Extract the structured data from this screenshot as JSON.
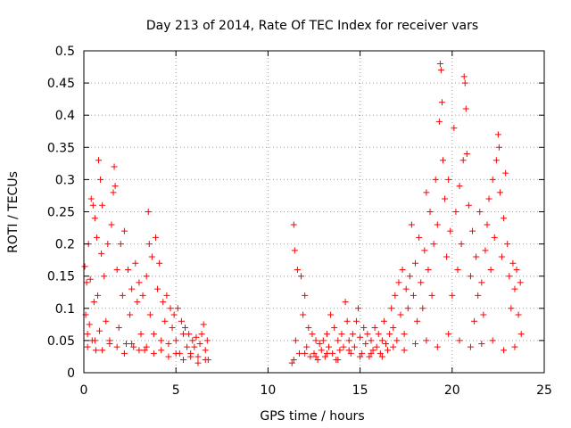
{
  "chart_data": {
    "type": "scatter",
    "title": "Day 213 of 2014, Rate Of TEC Index for receiver vars",
    "xlabel": "GPS time / hours",
    "ylabel": "ROTI / TECUs",
    "xlim": [
      0,
      25
    ],
    "ylim": [
      0,
      0.5
    ],
    "xticks": [
      0,
      5,
      10,
      15,
      20,
      25
    ],
    "xtick_labels": [
      "0",
      "5",
      "10",
      "15",
      "20",
      "25"
    ],
    "yticks": [
      0,
      0.05,
      0.1,
      0.15,
      0.2,
      0.25,
      0.3,
      0.35,
      0.4,
      0.45,
      0.5
    ],
    "ytick_labels": [
      "0",
      "0.05",
      "0.1",
      "0.15",
      "0.2",
      "0.25",
      "0.3",
      "0.35",
      "0.4",
      "0.45",
      "0.5"
    ],
    "grid": true,
    "marker": "+",
    "marker_color": "#ff0000",
    "series": [
      {
        "name": "ROTI",
        "points": [
          [
            0.05,
            0.165
          ],
          [
            0.1,
            0.09
          ],
          [
            0.15,
            0.14
          ],
          [
            0.2,
            0.06
          ],
          [
            0.25,
            0.2
          ],
          [
            0.3,
            0.075
          ],
          [
            0.35,
            0.145
          ],
          [
            0.4,
            0.27
          ],
          [
            0.45,
            0.05
          ],
          [
            0.5,
            0.26
          ],
          [
            0.55,
            0.11
          ],
          [
            0.6,
            0.24
          ],
          [
            0.65,
            0.035
          ],
          [
            0.7,
            0.21
          ],
          [
            0.75,
            0.12
          ],
          [
            0.8,
            0.33
          ],
          [
            0.85,
            0.065
          ],
          [
            0.9,
            0.3
          ],
          [
            0.95,
            0.185
          ],
          [
            1.0,
            0.26
          ],
          [
            1.1,
            0.15
          ],
          [
            1.2,
            0.08
          ],
          [
            1.3,
            0.2
          ],
          [
            1.4,
            0.05
          ],
          [
            1.5,
            0.23
          ],
          [
            1.6,
            0.28
          ],
          [
            1.65,
            0.32
          ],
          [
            1.7,
            0.29
          ],
          [
            1.8,
            0.16
          ],
          [
            1.9,
            0.07
          ],
          [
            2.0,
            0.2
          ],
          [
            2.1,
            0.12
          ],
          [
            2.2,
            0.22
          ],
          [
            2.3,
            0.045
          ],
          [
            2.4,
            0.16
          ],
          [
            2.5,
            0.09
          ],
          [
            2.6,
            0.13
          ],
          [
            2.7,
            0.04
          ],
          [
            2.8,
            0.17
          ],
          [
            2.9,
            0.11
          ],
          [
            3.0,
            0.14
          ],
          [
            3.1,
            0.06
          ],
          [
            3.2,
            0.12
          ],
          [
            3.3,
            0.035
          ],
          [
            3.4,
            0.15
          ],
          [
            3.5,
            0.25
          ],
          [
            3.55,
            0.2
          ],
          [
            3.6,
            0.09
          ],
          [
            3.7,
            0.18
          ],
          [
            3.8,
            0.06
          ],
          [
            3.9,
            0.21
          ],
          [
            4.0,
            0.13
          ],
          [
            4.1,
            0.17
          ],
          [
            4.2,
            0.05
          ],
          [
            4.3,
            0.11
          ],
          [
            4.4,
            0.08
          ],
          [
            4.5,
            0.12
          ],
          [
            4.6,
            0.045
          ],
          [
            4.7,
            0.1
          ],
          [
            4.8,
            0.07
          ],
          [
            4.9,
            0.09
          ],
          [
            5.0,
            0.05
          ],
          [
            5.1,
            0.1
          ],
          [
            5.2,
            0.03
          ],
          [
            5.3,
            0.08
          ],
          [
            5.4,
            0.06
          ],
          [
            5.5,
            0.07
          ],
          [
            5.6,
            0.04
          ],
          [
            5.7,
            0.06
          ],
          [
            5.8,
            0.03
          ],
          [
            5.9,
            0.05
          ],
          [
            6.0,
            0.04
          ],
          [
            6.1,
            0.055
          ],
          [
            6.2,
            0.025
          ],
          [
            6.3,
            0.045
          ],
          [
            6.4,
            0.06
          ],
          [
            6.5,
            0.075
          ],
          [
            6.6,
            0.035
          ],
          [
            6.7,
            0.05
          ],
          [
            6.75,
            0.02
          ],
          [
            0.2,
            0.04
          ],
          [
            0.6,
            0.05
          ],
          [
            1.0,
            0.035
          ],
          [
            1.4,
            0.045
          ],
          [
            1.8,
            0.04
          ],
          [
            2.2,
            0.03
          ],
          [
            2.6,
            0.045
          ],
          [
            3.0,
            0.035
          ],
          [
            3.4,
            0.04
          ],
          [
            3.8,
            0.03
          ],
          [
            4.2,
            0.035
          ],
          [
            4.6,
            0.025
          ],
          [
            5.0,
            0.03
          ],
          [
            5.4,
            0.02
          ],
          [
            5.8,
            0.025
          ],
          [
            6.2,
            0.015
          ],
          [
            6.6,
            0.02
          ],
          [
            11.3,
            0.015
          ],
          [
            11.4,
            0.23
          ],
          [
            11.45,
            0.19
          ],
          [
            11.5,
            0.05
          ],
          [
            11.6,
            0.16
          ],
          [
            11.7,
            0.03
          ],
          [
            11.8,
            0.15
          ],
          [
            11.9,
            0.09
          ],
          [
            12.0,
            0.12
          ],
          [
            12.1,
            0.04
          ],
          [
            12.2,
            0.07
          ],
          [
            12.3,
            0.025
          ],
          [
            12.4,
            0.06
          ],
          [
            12.5,
            0.03
          ],
          [
            12.6,
            0.05
          ],
          [
            12.7,
            0.02
          ],
          [
            12.8,
            0.045
          ],
          [
            12.9,
            0.035
          ],
          [
            13.0,
            0.05
          ],
          [
            13.1,
            0.025
          ],
          [
            13.2,
            0.06
          ],
          [
            13.3,
            0.04
          ],
          [
            13.4,
            0.09
          ],
          [
            13.5,
            0.03
          ],
          [
            13.6,
            0.07
          ],
          [
            13.7,
            0.02
          ],
          [
            13.8,
            0.05
          ],
          [
            13.9,
            0.035
          ],
          [
            14.0,
            0.06
          ],
          [
            14.1,
            0.04
          ],
          [
            14.2,
            0.11
          ],
          [
            14.3,
            0.08
          ],
          [
            14.4,
            0.05
          ],
          [
            14.5,
            0.03
          ],
          [
            14.6,
            0.06
          ],
          [
            14.7,
            0.04
          ],
          [
            14.8,
            0.08
          ],
          [
            14.9,
            0.1
          ],
          [
            15.0,
            0.055
          ],
          [
            15.1,
            0.03
          ],
          [
            15.2,
            0.07
          ],
          [
            15.3,
            0.045
          ],
          [
            15.4,
            0.06
          ],
          [
            15.5,
            0.025
          ],
          [
            15.6,
            0.05
          ],
          [
            15.7,
            0.035
          ],
          [
            15.8,
            0.07
          ],
          [
            15.9,
            0.04
          ],
          [
            16.0,
            0.06
          ],
          [
            16.1,
            0.03
          ],
          [
            16.2,
            0.05
          ],
          [
            16.3,
            0.08
          ],
          [
            16.4,
            0.045
          ],
          [
            16.5,
            0.035
          ],
          [
            16.6,
            0.06
          ],
          [
            16.7,
            0.1
          ],
          [
            16.8,
            0.07
          ],
          [
            16.9,
            0.12
          ],
          [
            17.0,
            0.05
          ],
          [
            17.1,
            0.14
          ],
          [
            17.2,
            0.09
          ],
          [
            17.3,
            0.16
          ],
          [
            17.4,
            0.06
          ],
          [
            17.5,
            0.13
          ],
          [
            17.6,
            0.1
          ],
          [
            17.7,
            0.15
          ],
          [
            17.8,
            0.23
          ],
          [
            17.9,
            0.12
          ],
          [
            18.0,
            0.17
          ],
          [
            18.1,
            0.08
          ],
          [
            18.2,
            0.21
          ],
          [
            18.3,
            0.14
          ],
          [
            18.4,
            0.1
          ],
          [
            18.5,
            0.19
          ],
          [
            18.6,
            0.28
          ],
          [
            18.7,
            0.16
          ],
          [
            18.8,
            0.25
          ],
          [
            18.9,
            0.12
          ],
          [
            19.0,
            0.2
          ],
          [
            19.1,
            0.3
          ],
          [
            19.2,
            0.23
          ],
          [
            19.3,
            0.39
          ],
          [
            19.35,
            0.48
          ],
          [
            19.4,
            0.47
          ],
          [
            19.45,
            0.42
          ],
          [
            19.5,
            0.33
          ],
          [
            19.6,
            0.27
          ],
          [
            19.7,
            0.18
          ],
          [
            19.8,
            0.3
          ],
          [
            19.9,
            0.22
          ],
          [
            20.0,
            0.12
          ],
          [
            20.1,
            0.38
          ],
          [
            20.2,
            0.25
          ],
          [
            20.3,
            0.16
          ],
          [
            20.4,
            0.29
          ],
          [
            20.5,
            0.2
          ],
          [
            20.6,
            0.33
          ],
          [
            20.65,
            0.46
          ],
          [
            20.7,
            0.45
          ],
          [
            20.75,
            0.41
          ],
          [
            20.8,
            0.34
          ],
          [
            20.9,
            0.26
          ],
          [
            21.0,
            0.15
          ],
          [
            21.1,
            0.22
          ],
          [
            21.2,
            0.08
          ],
          [
            21.3,
            0.18
          ],
          [
            21.4,
            0.12
          ],
          [
            21.5,
            0.25
          ],
          [
            21.6,
            0.14
          ],
          [
            21.7,
            0.09
          ],
          [
            21.8,
            0.19
          ],
          [
            21.9,
            0.23
          ],
          [
            22.0,
            0.27
          ],
          [
            22.1,
            0.16
          ],
          [
            22.2,
            0.3
          ],
          [
            22.3,
            0.21
          ],
          [
            22.4,
            0.33
          ],
          [
            22.5,
            0.37
          ],
          [
            22.55,
            0.35
          ],
          [
            22.6,
            0.28
          ],
          [
            22.7,
            0.18
          ],
          [
            22.8,
            0.24
          ],
          [
            22.9,
            0.31
          ],
          [
            23.0,
            0.2
          ],
          [
            23.1,
            0.15
          ],
          [
            23.2,
            0.1
          ],
          [
            23.3,
            0.17
          ],
          [
            23.4,
            0.13
          ],
          [
            23.5,
            0.16
          ],
          [
            23.6,
            0.09
          ],
          [
            23.7,
            0.14
          ],
          [
            23.75,
            0.06
          ],
          [
            11.4,
            0.02
          ],
          [
            12.0,
            0.03
          ],
          [
            12.6,
            0.025
          ],
          [
            13.2,
            0.03
          ],
          [
            13.8,
            0.02
          ],
          [
            14.4,
            0.035
          ],
          [
            15.0,
            0.025
          ],
          [
            15.6,
            0.03
          ],
          [
            16.2,
            0.025
          ],
          [
            16.8,
            0.04
          ],
          [
            17.4,
            0.035
          ],
          [
            18.0,
            0.045
          ],
          [
            18.6,
            0.05
          ],
          [
            19.2,
            0.04
          ],
          [
            19.8,
            0.06
          ],
          [
            20.4,
            0.05
          ],
          [
            21.0,
            0.04
          ],
          [
            21.6,
            0.045
          ],
          [
            22.2,
            0.05
          ],
          [
            22.8,
            0.035
          ],
          [
            23.4,
            0.04
          ]
        ]
      }
    ]
  }
}
